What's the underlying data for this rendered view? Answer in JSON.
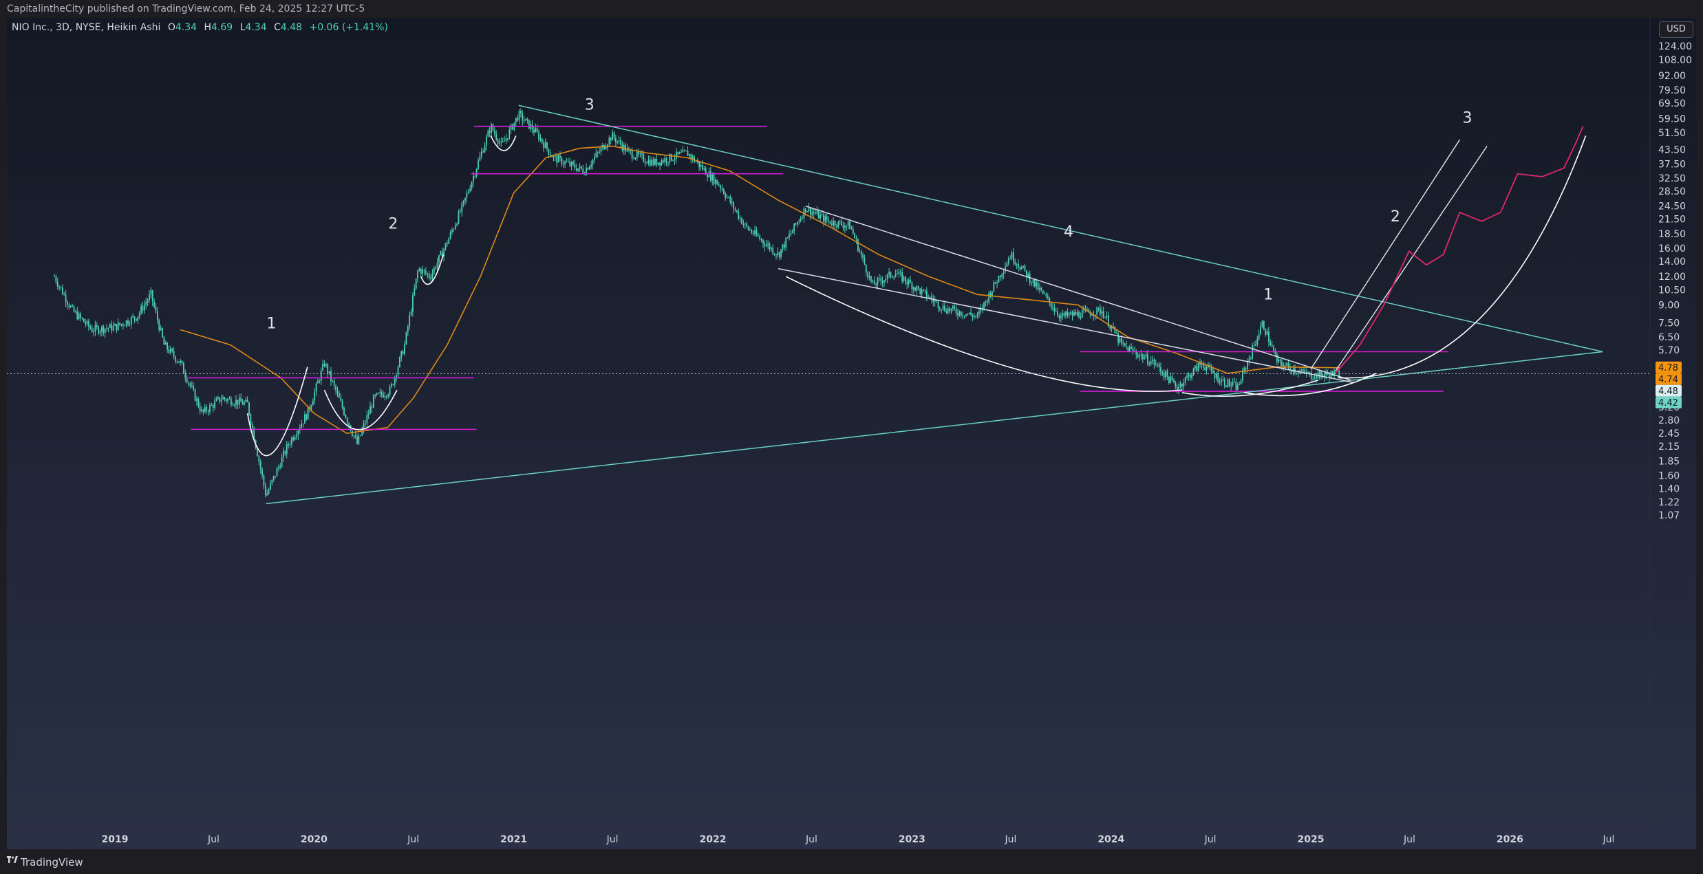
{
  "header": {
    "publisher_line": "CapitalintheCity published on TradingView.com, Feb 24, 2025 12:27 UTC-5"
  },
  "legend": {
    "symbol": "NIO Inc., 3D, NYSE, Heikin Ashi",
    "open_label": "O",
    "open": "4.34",
    "high_label": "H",
    "high": "4.69",
    "low_label": "L",
    "low": "4.34",
    "close_label": "C",
    "close": "4.48",
    "change": "+0.06 (+1.41%)"
  },
  "currency": "USD",
  "footer": {
    "brand": "TradingView"
  },
  "colors": {
    "background": "#1c1f2e",
    "candle_up": "#4dd0b4",
    "moving_average": "#e08a16",
    "support_resistance": "#d51cd6",
    "trendline": "#6ad0c8",
    "projection_pink": "#e0276f",
    "white_lines": "#ffffff"
  },
  "chart_data": {
    "type": "candlestick",
    "scale": "log",
    "grid": false,
    "y_ticks": [
      "124.00",
      "108.00",
      "92.00",
      "79.50",
      "69.50",
      "59.50",
      "51.50",
      "43.50",
      "37.50",
      "32.50",
      "28.50",
      "24.50",
      "21.50",
      "18.50",
      "16.00",
      "14.00",
      "12.00",
      "10.50",
      "9.00",
      "7.50",
      "6.50",
      "5.70",
      "4.78",
      "4.74",
      "4.48",
      "4.42",
      "3.70",
      "3.20",
      "2.80",
      "2.45",
      "2.15",
      "1.85",
      "1.60",
      "1.40",
      "1.22",
      "1.07"
    ],
    "x_ticks": [
      {
        "label": "2019",
        "date": "2019-01-01",
        "year": true
      },
      {
        "label": "Jul",
        "date": "2019-07-01",
        "year": false
      },
      {
        "label": "2020",
        "date": "2020-01-01",
        "year": true
      },
      {
        "label": "Jul",
        "date": "2020-07-01",
        "year": false
      },
      {
        "label": "2021",
        "date": "2021-01-01",
        "year": true
      },
      {
        "label": "Jul",
        "date": "2021-07-01",
        "year": false
      },
      {
        "label": "2022",
        "date": "2022-01-01",
        "year": true
      },
      {
        "label": "Jul",
        "date": "2022-07-01",
        "year": false
      },
      {
        "label": "2023",
        "date": "2023-01-01",
        "year": true
      },
      {
        "label": "Jul",
        "date": "2023-07-01",
        "year": false
      },
      {
        "label": "2024",
        "date": "2024-01-01",
        "year": true
      },
      {
        "label": "Jul",
        "date": "2024-07-01",
        "year": false
      },
      {
        "label": "2025",
        "date": "2025-01-01",
        "year": true
      },
      {
        "label": "Jul",
        "date": "2025-07-01",
        "year": false
      },
      {
        "label": "2026",
        "date": "2026-01-01",
        "year": true
      },
      {
        "label": "Jul",
        "date": "2026-07-01",
        "year": false
      }
    ],
    "price_tags": [
      {
        "label": "4.78",
        "price": 4.78,
        "bg": "#f5940f",
        "fg": "#131722"
      },
      {
        "label": "4.74",
        "price": 4.74,
        "bg": "#f5940f",
        "fg": "#131722"
      },
      {
        "label": "4.48",
        "price": 4.48,
        "bg": "#ddeef0",
        "fg": "#131722"
      },
      {
        "label": "4.42",
        "price": 4.42,
        "bg": "#6fd4c6",
        "fg": "#131722"
      }
    ],
    "last_price": 4.48,
    "price_path": [
      [
        "2018-09-12",
        12.0
      ],
      [
        "2018-10-15",
        8.5
      ],
      [
        "2018-11-20",
        7.0
      ],
      [
        "2019-01-02",
        7.2
      ],
      [
        "2019-02-10",
        8.0
      ],
      [
        "2019-03-08",
        10.0
      ],
      [
        "2019-04-01",
        6.0
      ],
      [
        "2019-05-01",
        5.0
      ],
      [
        "2019-06-10",
        3.0
      ],
      [
        "2019-07-15",
        3.5
      ],
      [
        "2019-09-01",
        3.3
      ],
      [
        "2019-10-05",
        1.3
      ],
      [
        "2019-11-15",
        2.2
      ],
      [
        "2019-12-20",
        3.0
      ],
      [
        "2020-01-20",
        5.0
      ],
      [
        "2020-02-15",
        3.5
      ],
      [
        "2020-03-20",
        2.2
      ],
      [
        "2020-04-20",
        3.5
      ],
      [
        "2020-05-20",
        3.8
      ],
      [
        "2020-06-15",
        6.0
      ],
      [
        "2020-07-10",
        13.0
      ],
      [
        "2020-08-01",
        12.0
      ],
      [
        "2020-09-01",
        17.0
      ],
      [
        "2020-10-01",
        25.0
      ],
      [
        "2020-11-20",
        55.0
      ],
      [
        "2020-12-10",
        45.0
      ],
      [
        "2021-01-10",
        62.0
      ],
      [
        "2021-02-10",
        52.0
      ],
      [
        "2021-03-15",
        40.0
      ],
      [
        "2021-05-10",
        35.0
      ],
      [
        "2021-06-30",
        50.0
      ],
      [
        "2021-08-01",
        42.0
      ],
      [
        "2021-09-15",
        38.0
      ],
      [
        "2021-11-15",
        42.0
      ],
      [
        "2022-01-15",
        30.0
      ],
      [
        "2022-03-01",
        20.0
      ],
      [
        "2022-05-01",
        15.0
      ],
      [
        "2022-06-20",
        24.0
      ],
      [
        "2022-08-01",
        21.0
      ],
      [
        "2022-09-10",
        20.0
      ],
      [
        "2022-10-20",
        11.0
      ],
      [
        "2022-12-01",
        12.5
      ],
      [
        "2023-01-01",
        11.0
      ],
      [
        "2023-03-01",
        8.7
      ],
      [
        "2023-05-01",
        8.0
      ],
      [
        "2023-07-01",
        15.0
      ],
      [
        "2023-08-15",
        11.0
      ],
      [
        "2023-10-01",
        8.0
      ],
      [
        "2023-12-15",
        8.5
      ],
      [
        "2024-01-20",
        6.0
      ],
      [
        "2024-03-20",
        5.0
      ],
      [
        "2024-05-01",
        3.9
      ],
      [
        "2024-06-15",
        5.0
      ],
      [
        "2024-07-20",
        4.2
      ],
      [
        "2024-08-20",
        3.9
      ],
      [
        "2024-10-05",
        7.5
      ],
      [
        "2024-11-01",
        5.0
      ],
      [
        "2025-01-01",
        4.4
      ],
      [
        "2025-02-24",
        4.48
      ]
    ],
    "moving_average": [
      [
        "2019-05-01",
        7.0
      ],
      [
        "2019-08-01",
        6.0
      ],
      [
        "2019-11-01",
        4.3
      ],
      [
        "2020-01-01",
        3.0
      ],
      [
        "2020-03-01",
        2.45
      ],
      [
        "2020-05-15",
        2.6
      ],
      [
        "2020-07-01",
        3.5
      ],
      [
        "2020-09-01",
        6.0
      ],
      [
        "2020-11-01",
        12.0
      ],
      [
        "2021-01-01",
        28.0
      ],
      [
        "2021-03-01",
        40.0
      ],
      [
        "2021-05-01",
        44.0
      ],
      [
        "2021-07-01",
        45.0
      ],
      [
        "2021-09-01",
        42.0
      ],
      [
        "2021-11-15",
        40.0
      ],
      [
        "2022-02-01",
        35.0
      ],
      [
        "2022-05-01",
        26.0
      ],
      [
        "2022-08-01",
        20.0
      ],
      [
        "2022-11-01",
        15.0
      ],
      [
        "2023-02-01",
        12.0
      ],
      [
        "2023-05-01",
        10.0
      ],
      [
        "2023-08-01",
        9.5
      ],
      [
        "2023-11-01",
        9.0
      ],
      [
        "2024-02-01",
        6.5
      ],
      [
        "2024-05-01",
        5.5
      ],
      [
        "2024-08-01",
        4.5
      ],
      [
        "2024-11-01",
        4.8
      ],
      [
        "2025-02-24",
        4.76
      ]
    ],
    "horizontal_levels": [
      {
        "from": "2019-05-15",
        "to": "2020-10-20",
        "price": 4.3
      },
      {
        "from": "2019-05-20",
        "to": "2020-10-25",
        "price": 2.55
      },
      {
        "from": "2020-10-20",
        "to": "2022-04-10",
        "price": 55.0
      },
      {
        "from": "2020-10-15",
        "to": "2022-05-10",
        "price": 34.0
      },
      {
        "from": "2023-11-05",
        "to": "2025-09-10",
        "price": 5.6
      },
      {
        "from": "2023-11-05",
        "to": "2025-09-01",
        "price": 3.75
      }
    ],
    "trendlines": [
      {
        "from": [
          "2021-01-10",
          68.0
        ],
        "to": [
          "2026-06-20",
          5.6
        ]
      },
      {
        "from": [
          "2019-10-05",
          1.2
        ],
        "to": [
          "2026-06-20",
          5.6
        ]
      },
      {
        "from": [
          "2022-06-20",
          24.5
        ],
        "to": [
          "2025-03-15",
          4.2
        ]
      },
      {
        "from": [
          "2022-05-01",
          13.0
        ],
        "to": [
          "2025-03-20",
          4.1
        ]
      }
    ],
    "projections": [
      {
        "points": [
          [
            "2025-01-01",
            4.7
          ],
          [
            "2025-10-01",
            48.0
          ]
        ]
      },
      {
        "points": [
          [
            "2025-02-15",
            4.6
          ],
          [
            "2025-11-20",
            45.0
          ]
        ]
      }
    ],
    "pink_projection": [
      [
        "2025-02-15",
        4.5
      ],
      [
        "2025-04-01",
        6.0
      ],
      [
        "2025-05-15",
        9.0
      ],
      [
        "2025-06-30",
        15.5
      ],
      [
        "2025-08-01",
        13.5
      ],
      [
        "2025-09-01",
        15.0
      ],
      [
        "2025-10-01",
        23.0
      ],
      [
        "2025-11-10",
        21.0
      ],
      [
        "2025-12-15",
        23.0
      ],
      [
        "2026-01-15",
        34.0
      ],
      [
        "2026-03-01",
        33.0
      ],
      [
        "2026-04-10",
        36.0
      ],
      [
        "2026-05-01",
        46.0
      ],
      [
        "2026-05-15",
        55.0
      ]
    ],
    "wave_labels": [
      {
        "text": "1",
        "date": "2019-10-15",
        "price": 7.1
      },
      {
        "text": "2",
        "date": "2020-05-25",
        "price": 19.5
      },
      {
        "text": "3",
        "date": "2021-05-20",
        "price": 65.0
      },
      {
        "text": "4",
        "date": "2023-10-15",
        "price": 18.0
      },
      {
        "text": "1",
        "date": "2024-10-15",
        "price": 9.5
      },
      {
        "text": "2",
        "date": "2025-06-05",
        "price": 21.0
      },
      {
        "text": "3",
        "date": "2025-10-15",
        "price": 57.0
      }
    ]
  }
}
